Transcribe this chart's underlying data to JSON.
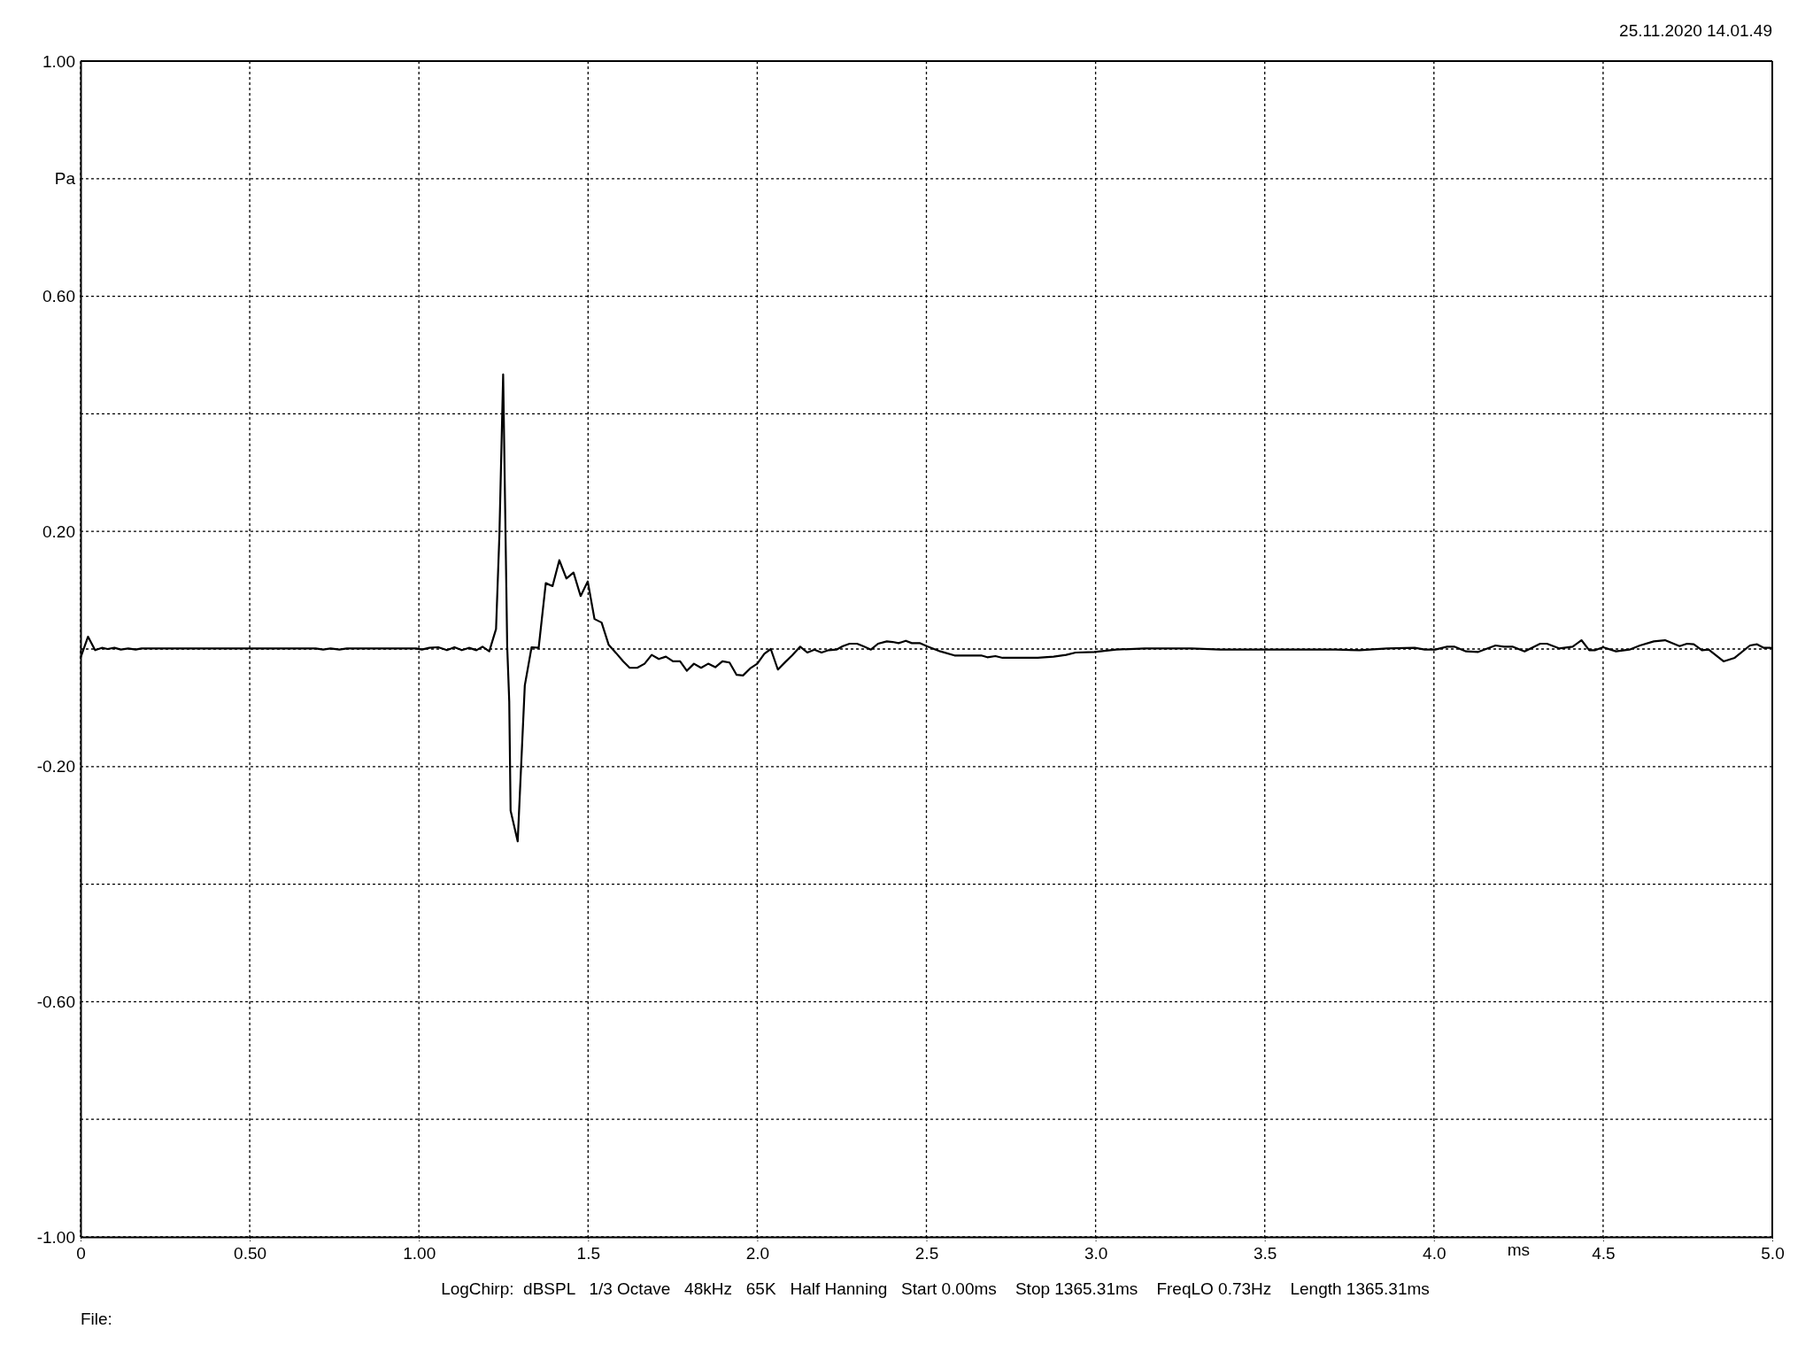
{
  "chart_data": {
    "type": "line",
    "xlabel": "ms",
    "ylabel": "Pa",
    "annotations": [
      "25.11.2020 14.01.49",
      "LogChirp:  dBSPL   1/3 Octave   48kHz   65K   Half Hanning   Start 0.00ms    Stop 1365.31ms    FreqLO 0.73Hz    Length 1365.31ms",
      "File:"
    ],
    "xlim": [
      0,
      5
    ],
    "ylim": [
      -1,
      1
    ],
    "xticks": [
      0,
      {
        "value": 0.5,
        "label": "0.50"
      },
      {
        "value": 1,
        "label": "1.00"
      },
      1.5,
      {
        "value": 2,
        "label": "2.0"
      },
      2.5,
      {
        "value": 3,
        "label": "3.0"
      },
      3.5,
      {
        "value": 4,
        "label": "4.0"
      },
      4.5,
      {
        "value": 5,
        "label": "5.0"
      }
    ],
    "yticks": [
      {
        "value": -1,
        "label": "-1.00"
      },
      {
        "value": -0.8,
        "label": null
      },
      {
        "value": -0.6,
        "label": "-0.60"
      },
      {
        "value": -0.4,
        "label": null
      },
      {
        "value": -0.2,
        "label": "-0.20"
      },
      {
        "value": 0,
        "label": null
      },
      {
        "value": 0.2,
        "label": "0.20"
      },
      {
        "value": 0.4,
        "label": null
      },
      {
        "value": 0.6,
        "label": "0.60"
      },
      {
        "value": 0.8,
        "label": null
      },
      {
        "value": 1,
        "label": "1.00"
      }
    ],
    "grid": true,
    "series": [
      {
        "color": "#000000",
        "x": [
          0.0,
          0.022,
          0.043,
          0.063,
          0.08,
          0.1,
          0.119,
          0.141,
          0.163,
          0.18,
          0.695,
          0.717,
          0.739,
          0.765,
          0.787,
          0.992,
          1.009,
          1.031,
          1.057,
          1.083,
          1.105,
          1.127,
          1.148,
          1.17,
          1.188,
          1.208,
          1.228,
          1.238,
          1.249,
          1.261,
          1.267,
          1.271,
          1.292,
          1.313,
          1.333,
          1.354,
          1.375,
          1.395,
          1.415,
          1.436,
          1.457,
          1.478,
          1.499,
          1.519,
          1.54,
          1.561,
          1.583,
          1.604,
          1.623,
          1.645,
          1.667,
          1.688,
          1.709,
          1.73,
          1.751,
          1.772,
          1.792,
          1.813,
          1.834,
          1.855,
          1.876,
          1.897,
          1.918,
          1.939,
          1.958,
          1.979,
          2.0,
          2.021,
          2.04,
          2.061,
          2.083,
          2.103,
          2.127,
          2.148,
          2.169,
          2.19,
          2.211,
          2.234,
          2.253,
          2.273,
          2.295,
          2.316,
          2.336,
          2.357,
          2.383,
          2.4,
          2.418,
          2.439,
          2.457,
          2.48,
          2.504,
          2.541,
          2.583,
          2.662,
          2.68,
          2.704,
          2.725,
          2.764,
          2.829,
          2.876,
          2.913,
          2.941,
          2.996,
          3.061,
          3.145,
          3.284,
          3.368,
          3.709,
          3.78,
          3.861,
          3.943,
          3.973,
          4.004,
          4.039,
          4.06,
          4.095,
          4.131,
          4.182,
          4.207,
          4.232,
          4.268,
          4.314,
          4.334,
          4.37,
          4.41,
          4.436,
          4.459,
          4.477,
          4.5,
          4.538,
          4.578,
          4.609,
          4.65,
          4.683,
          4.726,
          4.748,
          4.768,
          4.792,
          4.812,
          4.856,
          4.889,
          4.934,
          4.955,
          4.975,
          4.995
        ],
        "values": [
          -0.015,
          0.021,
          -0.002,
          0.002,
          0,
          0.002,
          -0.001,
          0.001,
          -0.001,
          0.001,
          0.001,
          -0.001,
          0.001,
          -0.001,
          0.001,
          0.001,
          -0.001,
          0.002,
          0.003,
          -0.002,
          0.003,
          -0.002,
          0.002,
          -0.002,
          0.004,
          -0.004,
          0.034,
          0.195,
          0.467,
          0.004,
          -0.089,
          -0.275,
          -0.327,
          -0.062,
          0.003,
          0.002,
          0.112,
          0.107,
          0.151,
          0.12,
          0.13,
          0.09,
          0.115,
          0.051,
          0.045,
          0.007,
          -0.007,
          -0.021,
          -0.032,
          -0.032,
          -0.025,
          -0.01,
          -0.017,
          -0.013,
          -0.021,
          -0.021,
          -0.037,
          -0.025,
          -0.032,
          -0.025,
          -0.031,
          -0.021,
          -0.023,
          -0.044,
          -0.045,
          -0.033,
          -0.025,
          -0.008,
          0.0,
          -0.035,
          -0.022,
          -0.011,
          0.004,
          -0.006,
          -0.001,
          -0.006,
          -0.002,
          -0.001,
          0.005,
          0.009,
          0.009,
          0.004,
          -0.001,
          0.009,
          0.013,
          0.012,
          0.01,
          0.014,
          0.01,
          0.01,
          0.004,
          -0.004,
          -0.011,
          -0.011,
          -0.014,
          -0.012,
          -0.015,
          -0.015,
          -0.015,
          -0.013,
          -0.01,
          -0.006,
          -0.005,
          -0.001,
          0.001,
          0.001,
          -0.001,
          -0.001,
          -0.002,
          0.001,
          0.002,
          -0.001,
          -0.001,
          0.004,
          0.004,
          -0.004,
          -0.005,
          0.006,
          0.004,
          0.004,
          -0.004,
          0.009,
          0.009,
          0.001,
          0.004,
          0.015,
          -0.002,
          -0.002,
          0.003,
          -0.004,
          -0.001,
          0.006,
          0.013,
          0.015,
          0.005,
          0.009,
          0.008,
          -0.002,
          -0.001,
          -0.021,
          -0.015,
          0.006,
          0.008,
          0.002,
          0.002
        ]
      }
    ]
  }
}
